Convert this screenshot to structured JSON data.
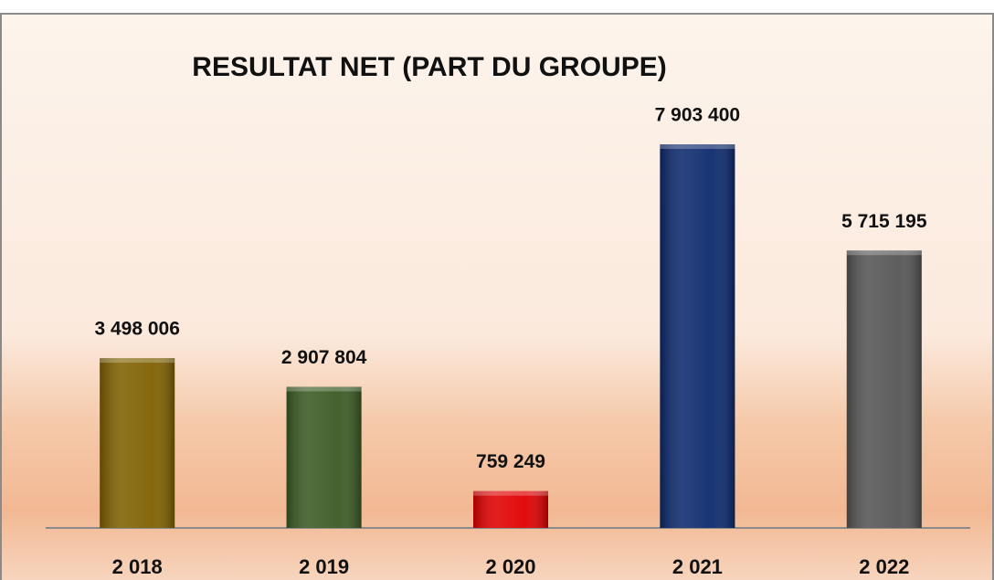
{
  "chart_data": {
    "type": "bar",
    "title": "RESULTAT NET (PART DU GROUPE)",
    "categories": [
      "2 018",
      "2 019",
      "2 020",
      "2 021",
      "2 022"
    ],
    "values": [
      3498006,
      2907804,
      759249,
      7903400,
      5715195
    ],
    "value_labels": [
      "3 498 006",
      "2 907 804",
      "759 249",
      "7 903 400",
      "5 715 195"
    ],
    "colors": [
      "#7f6000",
      "#3a5a23",
      "#e00000",
      "#0d2a6e",
      "#555555"
    ],
    "grid": false
  }
}
